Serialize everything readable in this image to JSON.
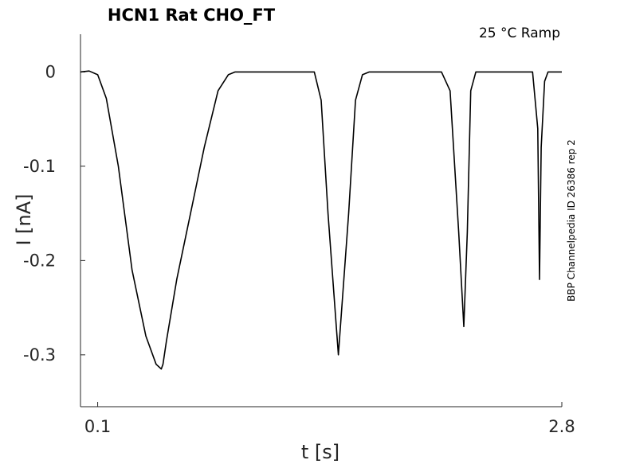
{
  "chart_data": {
    "type": "line",
    "title": "HCN1  Rat  CHO_FT",
    "annotation": "25 °C  Ramp",
    "side_note": "BBP Channelpedia ID 26386 rep 2",
    "xlabel": "t [s]",
    "ylabel": "I [nA]",
    "xlim": [
      0.0,
      2.8
    ],
    "ylim": [
      -0.355,
      0.04
    ],
    "x_ticks": [
      {
        "value": 0.1,
        "label": "0.1"
      },
      {
        "value": 2.8,
        "label": "2.8"
      }
    ],
    "y_ticks": [
      {
        "value": 0,
        "label": "0"
      },
      {
        "value": -0.1,
        "label": "-0.1"
      },
      {
        "value": -0.2,
        "label": "-0.2"
      },
      {
        "value": -0.3,
        "label": "-0.3"
      }
    ],
    "grid": false,
    "series": [
      {
        "color": "#000000",
        "x": [
          0.0,
          0.05,
          0.1,
          0.15,
          0.22,
          0.3,
          0.38,
          0.44,
          0.47,
          0.48,
          0.5,
          0.56,
          0.64,
          0.72,
          0.8,
          0.86,
          0.9,
          0.95,
          1.0,
          1.1,
          1.2,
          1.3,
          1.36,
          1.4,
          1.44,
          1.5,
          1.56,
          1.6,
          1.64,
          1.68,
          1.72,
          1.75,
          1.8,
          1.9,
          2.0,
          2.1,
          2.15,
          2.2,
          2.23,
          2.25,
          2.27,
          2.3,
          2.32,
          2.36,
          2.42,
          2.5,
          2.58,
          2.63,
          2.66,
          2.67,
          2.68,
          2.7,
          2.72,
          2.76,
          2.8
        ],
        "y": [
          0.0,
          0.001,
          -0.003,
          -0.028,
          -0.1,
          -0.21,
          -0.28,
          -0.31,
          -0.315,
          -0.31,
          -0.285,
          -0.22,
          -0.15,
          -0.08,
          -0.02,
          -0.003,
          0.0,
          0.0,
          0.0,
          0.0,
          0.0,
          0.0,
          0.0,
          -0.03,
          -0.15,
          -0.3,
          -0.15,
          -0.03,
          -0.003,
          0.0,
          0.0,
          0.0,
          0.0,
          0.0,
          0.0,
          0.0,
          -0.02,
          -0.17,
          -0.27,
          -0.17,
          -0.02,
          0.0,
          0.0,
          0.0,
          0.0,
          0.0,
          0.0,
          0.0,
          -0.06,
          -0.22,
          -0.08,
          -0.01,
          0.0,
          0.0,
          0.0
        ]
      }
    ]
  }
}
